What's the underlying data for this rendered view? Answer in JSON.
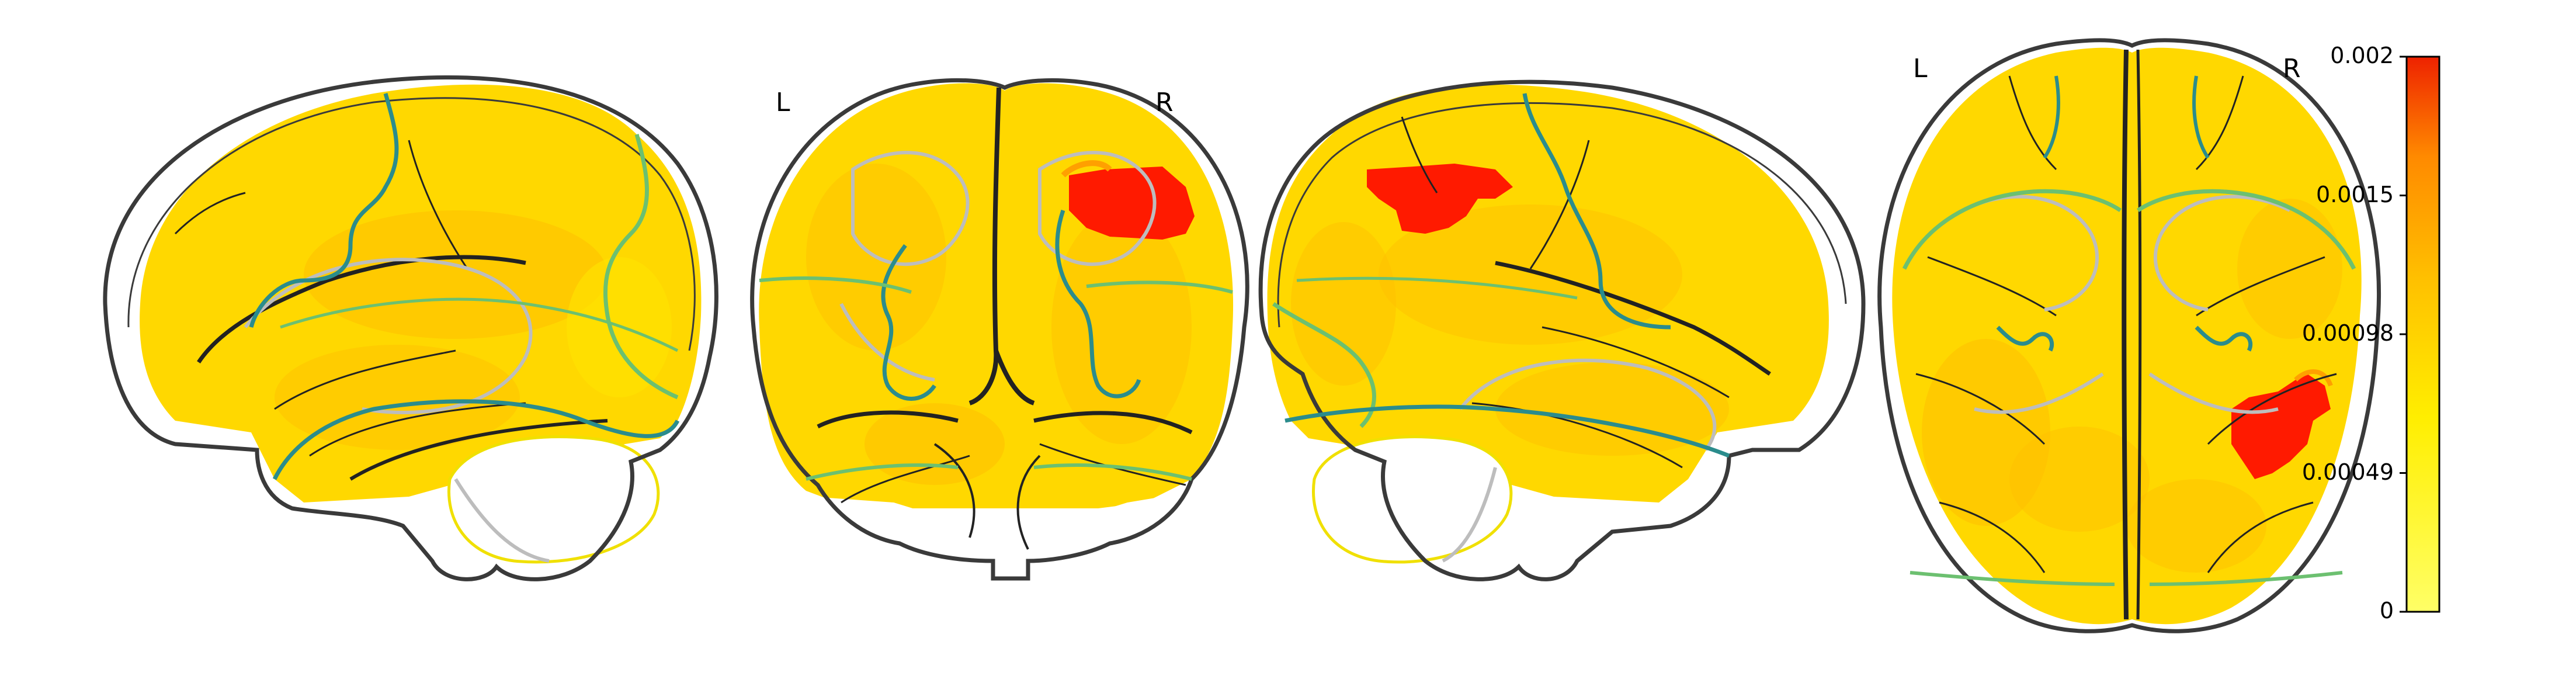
{
  "orientation_labels": {
    "coronal_left": "L",
    "coronal_right": "R",
    "axial_left": "L",
    "axial_right": "R"
  },
  "colorbar": {
    "colormap": [
      "#ffff66",
      "#ffee00",
      "#ffc000",
      "#ff8a00",
      "#ee2200"
    ],
    "min": 0,
    "max": 0.002,
    "ticks": [
      "0",
      "0.00049",
      "0.00098",
      "0.0015",
      "0.002"
    ]
  },
  "colors": {
    "brain_outline": "#3a3a3a",
    "sulci": "#222222",
    "inner_contour": "#bdbdbd",
    "region_teal": "#2b8c8c",
    "region_green": "#6cc070",
    "base_fill": "#ffd400",
    "hotspot": "#ff1a00"
  }
}
